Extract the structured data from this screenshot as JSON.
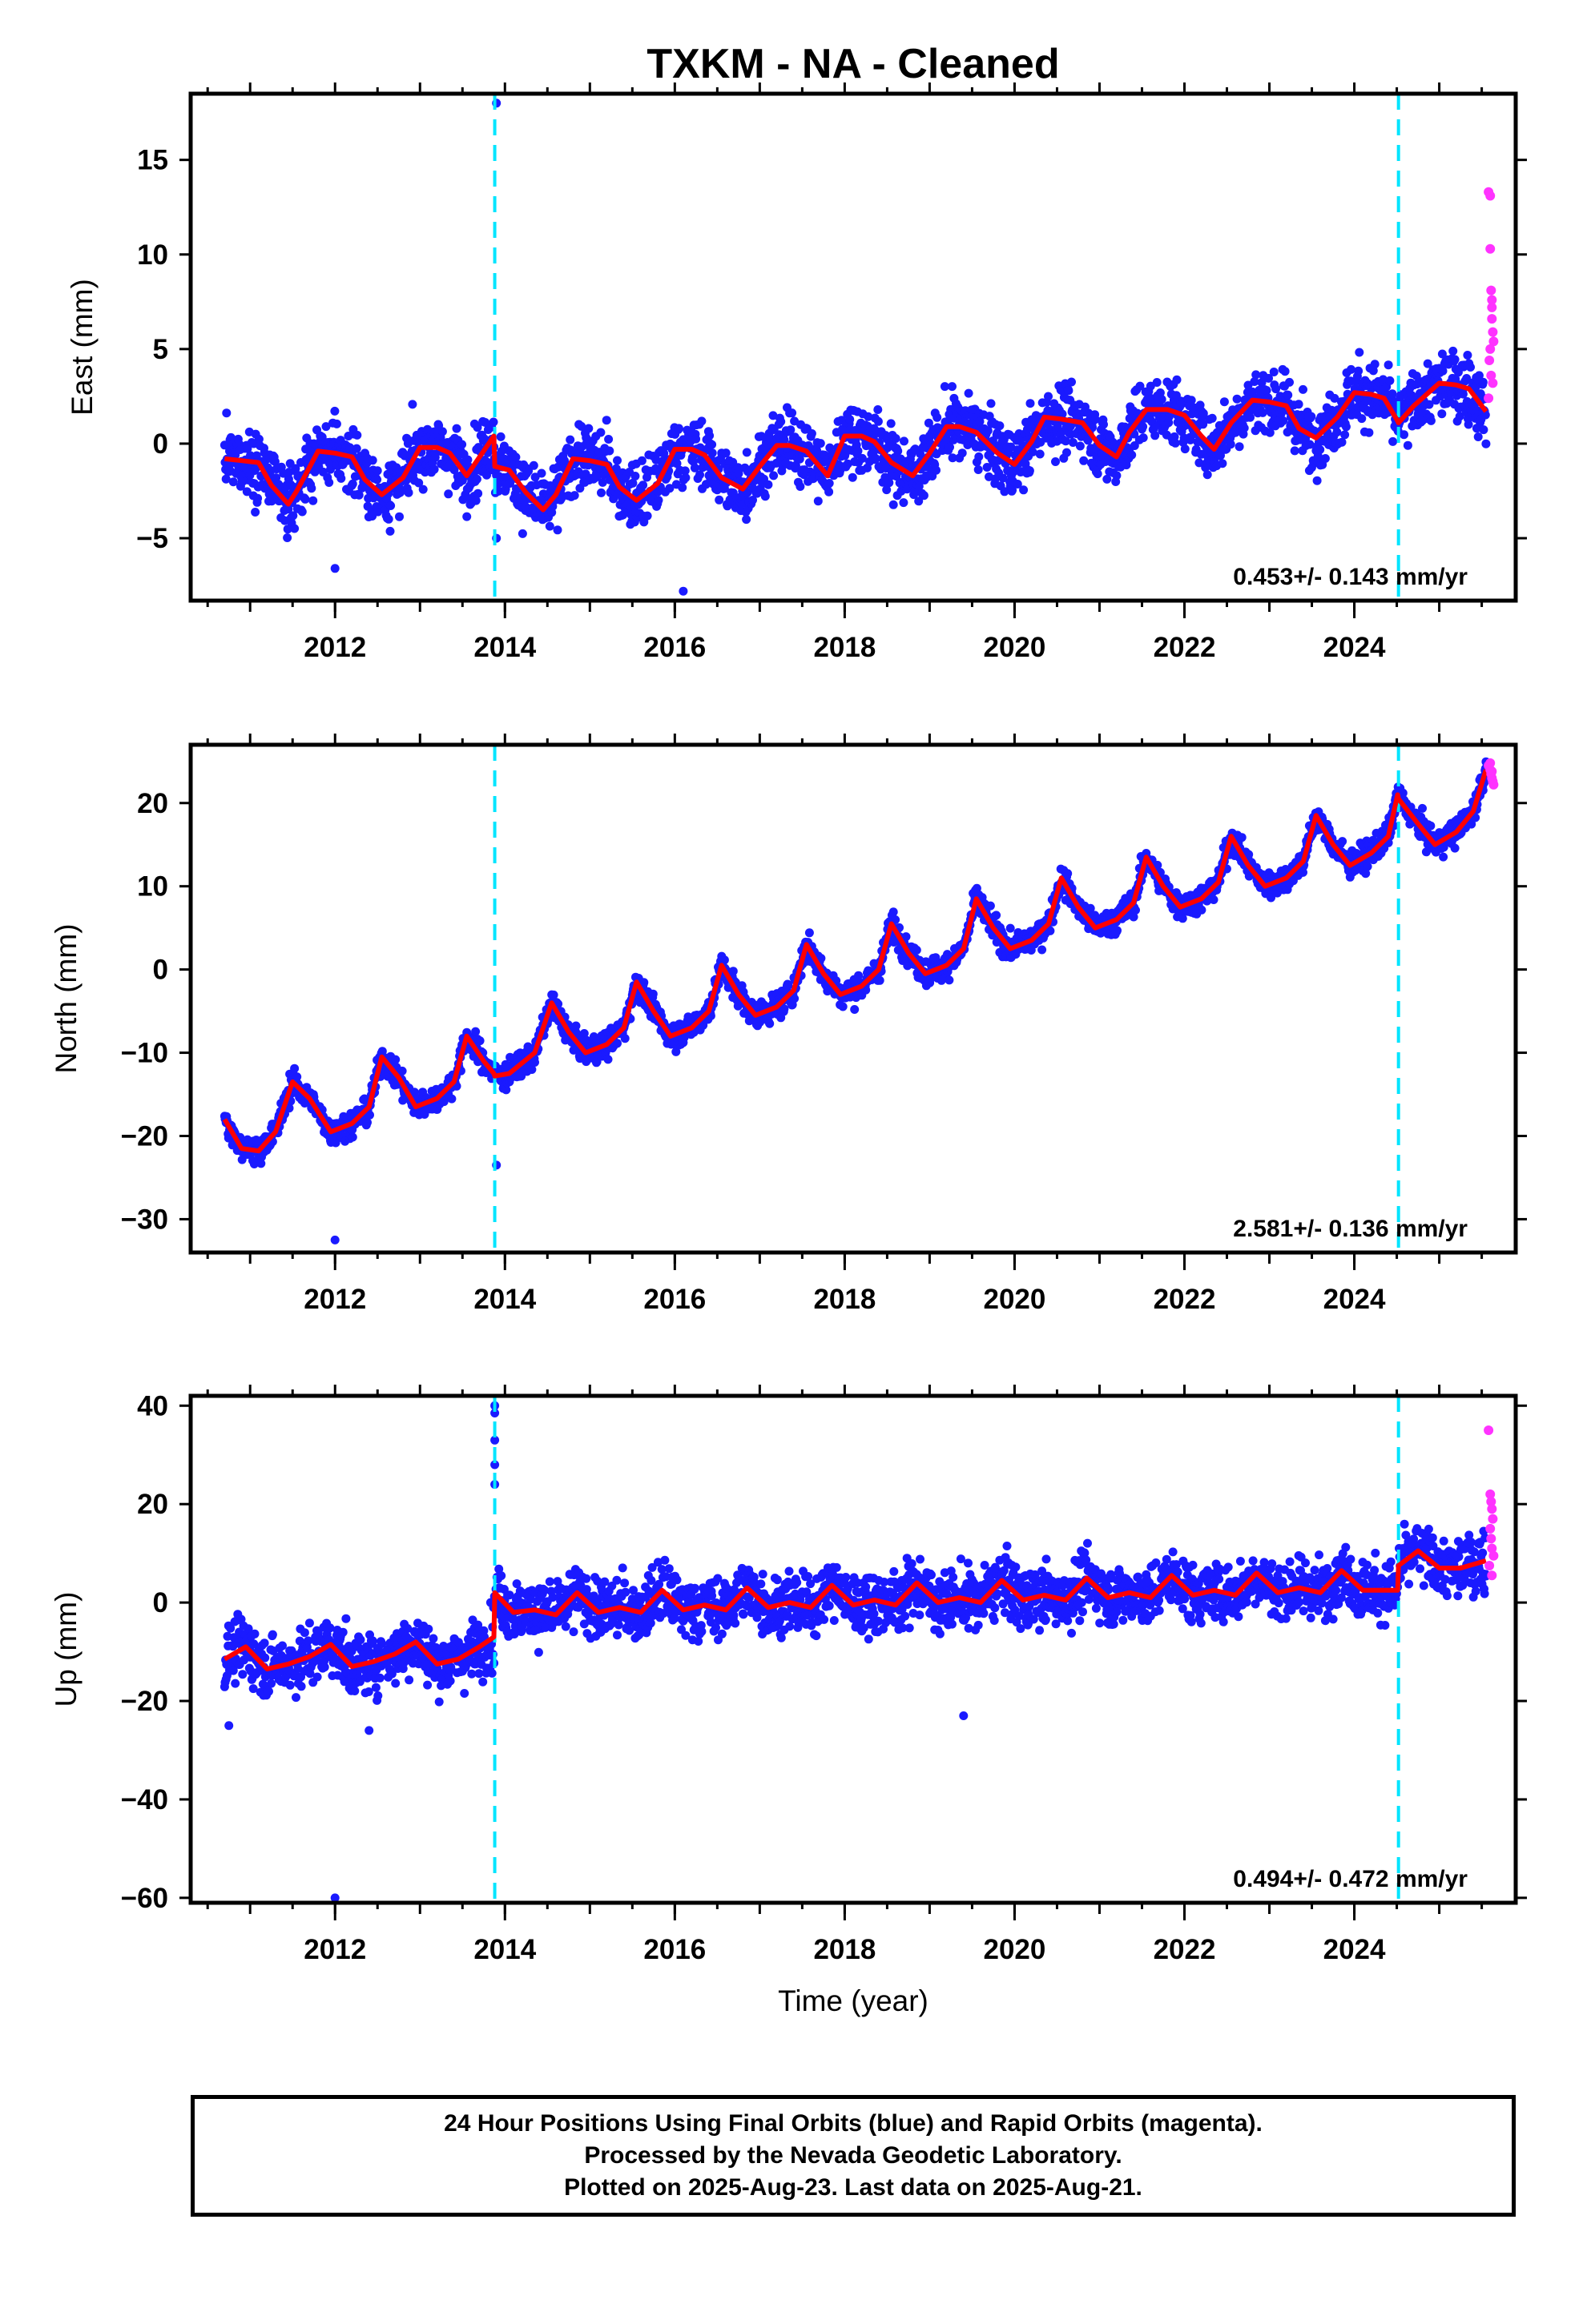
{
  "colors": {
    "final_orbits": "#1a1aff",
    "rapid_orbits": "#ff33ff",
    "model_fit": "#ff0000",
    "antenna_change_line": "#00e5ff"
  },
  "chart_data": [
    {
      "type": "scatter",
      "title": "TXKM  - NA - Cleaned",
      "ylabel": "East (mm)",
      "xlabel": "",
      "xlim": [
        2010.3,
        2025.9
      ],
      "ylim": [
        -8.3,
        18.5
      ],
      "xticks": [
        2012,
        2014,
        2016,
        2018,
        2020,
        2022,
        2024
      ],
      "xtick_labels": [
        "2012",
        "2014",
        "2016",
        "2018",
        "2020",
        "2022",
        "2024"
      ],
      "yticks": [
        -5,
        0,
        5,
        10,
        15
      ],
      "ytick_labels": [
        "−5",
        "0",
        "5",
        "10",
        "15"
      ],
      "rate_text": "0.453+/- 0.143 mm/yr",
      "grid": false,
      "vertical_lines": [
        2013.88,
        2024.52
      ],
      "series": [
        {
          "name": "Final Orbits (blue)",
          "style": "points",
          "trend": "noisy-seasonal",
          "x_range": [
            2010.7,
            2025.55
          ],
          "y_start": -0.9,
          "y_end": 4.2,
          "amplitude": 1.4,
          "noise": 1.2,
          "offsets": []
        },
        {
          "name": "Rapid Orbits (magenta)",
          "style": "points",
          "x": [
            2025.58,
            2025.6,
            2025.6,
            2025.61,
            2025.62,
            2025.62,
            2025.63,
            2025.64,
            2025.6,
            2025.59,
            2025.61,
            2025.63,
            2025.58,
            2025.62
          ],
          "y": [
            13.3,
            13.1,
            10.3,
            8.1,
            7.6,
            6.6,
            5.9,
            5.4,
            5.0,
            4.4,
            3.6,
            3.2,
            2.4,
            7.2
          ]
        },
        {
          "name": "Model fit",
          "style": "line",
          "x": [
            2010.7,
            2010.9,
            2011.1,
            2011.25,
            2011.45,
            2011.55,
            2011.8,
            2012.0,
            2012.2,
            2012.35,
            2012.55,
            2012.8,
            2013.0,
            2013.2,
            2013.35,
            2013.55,
            2013.87,
            2013.88,
            2014.05,
            2014.25,
            2014.45,
            2014.6,
            2014.8,
            2015.0,
            2015.2,
            2015.35,
            2015.55,
            2015.8,
            2016.0,
            2016.2,
            2016.35,
            2016.55,
            2016.8,
            2017.0,
            2017.2,
            2017.35,
            2017.55,
            2017.8,
            2018.0,
            2018.2,
            2018.35,
            2018.55,
            2018.8,
            2019.0,
            2019.2,
            2019.35,
            2019.55,
            2019.8,
            2020.0,
            2020.2,
            2020.35,
            2020.55,
            2020.8,
            2021.0,
            2021.2,
            2021.35,
            2021.55,
            2021.8,
            2022.0,
            2022.2,
            2022.35,
            2022.55,
            2022.8,
            2023.0,
            2023.2,
            2023.35,
            2023.55,
            2023.8,
            2024.0,
            2024.2,
            2024.35,
            2024.51,
            2024.52,
            2024.7,
            2025.0,
            2025.2,
            2025.35,
            2025.55
          ],
          "y": [
            -0.8,
            -0.9,
            -1.0,
            -2.2,
            -3.2,
            -2.5,
            -0.4,
            -0.5,
            -0.7,
            -1.9,
            -2.7,
            -1.8,
            -0.2,
            -0.2,
            -0.5,
            -1.7,
            0.4,
            -1.2,
            -1.4,
            -2.6,
            -3.5,
            -2.7,
            -0.8,
            -0.9,
            -1.1,
            -2.3,
            -3.0,
            -2.1,
            -0.3,
            -0.3,
            -0.6,
            -1.8,
            -2.4,
            -1.2,
            -0.1,
            -0.1,
            -0.4,
            -1.7,
            0.4,
            0.4,
            0.1,
            -1.0,
            -1.7,
            -0.5,
            0.9,
            0.9,
            0.6,
            -0.5,
            -1.1,
            0.1,
            1.4,
            1.3,
            1.1,
            -0.1,
            -0.7,
            0.6,
            1.8,
            1.8,
            1.5,
            0.4,
            -0.3,
            1.1,
            2.3,
            2.2,
            2.0,
            0.8,
            0.3,
            1.4,
            2.7,
            2.6,
            2.4,
            1.2,
            1.1,
            2.0,
            3.2,
            3.1,
            2.9,
            1.7
          ]
        }
      ]
    },
    {
      "type": "scatter",
      "title": "",
      "ylabel": "North (mm)",
      "xlabel": "",
      "xlim": [
        2010.3,
        2025.9
      ],
      "ylim": [
        -34,
        27
      ],
      "xticks": [
        2012,
        2014,
        2016,
        2018,
        2020,
        2022,
        2024
      ],
      "xtick_labels": [
        "2012",
        "2014",
        "2016",
        "2018",
        "2020",
        "2022",
        "2024"
      ],
      "yticks": [
        -30,
        -20,
        -10,
        0,
        10,
        20
      ],
      "ytick_labels": [
        "−30",
        "−20",
        "−10",
        "0",
        "10",
        "20"
      ],
      "rate_text": "2.581+/- 0.136 mm/yr",
      "grid": false,
      "vertical_lines": [
        2013.88,
        2024.52
      ],
      "series": [
        {
          "name": "Final Orbits (blue)",
          "style": "points",
          "trend": "seasonal",
          "x_range": [
            2010.7,
            2025.55
          ],
          "y_start": -19,
          "y_end": 18,
          "amplitude": 4.0,
          "noise": 1.1,
          "offsets": []
        },
        {
          "name": "Rapid Orbits (magenta)",
          "style": "points",
          "x": [
            2025.58,
            2025.6,
            2025.61,
            2025.62,
            2025.63,
            2025.64,
            2025.6,
            2025.62
          ],
          "y": [
            24.5,
            24.0,
            23.5,
            23.0,
            22.6,
            22.2,
            24.8,
            23.8
          ]
        },
        {
          "name": "Model fit",
          "style": "line",
          "x": [
            2010.7,
            2010.9,
            2011.1,
            2011.3,
            2011.5,
            2011.7,
            2011.95,
            2012.2,
            2012.4,
            2012.55,
            2012.75,
            2012.95,
            2013.2,
            2013.4,
            2013.55,
            2013.75,
            2013.87,
            2013.88,
            2014.05,
            2014.35,
            2014.55,
            2014.75,
            2014.95,
            2015.2,
            2015.4,
            2015.55,
            2015.75,
            2015.95,
            2016.2,
            2016.4,
            2016.55,
            2016.75,
            2016.95,
            2017.2,
            2017.4,
            2017.55,
            2017.75,
            2017.95,
            2018.2,
            2018.4,
            2018.55,
            2018.75,
            2018.95,
            2019.2,
            2019.4,
            2019.55,
            2019.75,
            2019.95,
            2020.2,
            2020.4,
            2020.55,
            2020.75,
            2020.95,
            2021.2,
            2021.4,
            2021.55,
            2021.75,
            2021.95,
            2022.2,
            2022.4,
            2022.55,
            2022.75,
            2022.95,
            2023.2,
            2023.4,
            2023.55,
            2023.75,
            2023.95,
            2024.2,
            2024.4,
            2024.51,
            2024.52,
            2024.75,
            2024.95,
            2025.2,
            2025.4,
            2025.55
          ],
          "y": [
            -18,
            -21.5,
            -21.8,
            -19.5,
            -13.5,
            -15.5,
            -19.5,
            -18.5,
            -16.5,
            -10.5,
            -13.0,
            -16.5,
            -15.5,
            -13.5,
            -8.0,
            -11.0,
            -12.5,
            -12.8,
            -12.5,
            -10.0,
            -4.0,
            -7.5,
            -10.0,
            -9.0,
            -7.0,
            -1.5,
            -5.0,
            -8.0,
            -7.0,
            -5.0,
            0.5,
            -3.0,
            -5.5,
            -4.5,
            -2.5,
            3.0,
            -0.5,
            -3.0,
            -2.0,
            0.0,
            5.5,
            2.0,
            -0.5,
            0.5,
            2.5,
            8.5,
            5.0,
            2.5,
            3.5,
            5.5,
            11.0,
            7.5,
            5.0,
            6.0,
            8.0,
            13.5,
            10.0,
            7.5,
            8.5,
            10.5,
            16.0,
            12.5,
            10.0,
            11.0,
            13.0,
            18.5,
            15.0,
            12.5,
            14.0,
            16.0,
            21.0,
            20.5,
            17.5,
            15.0,
            16.5,
            19.0,
            24.0
          ]
        }
      ]
    },
    {
      "type": "scatter",
      "title": "",
      "ylabel": "Up (mm)",
      "xlabel": "Time (year)",
      "xlim": [
        2010.3,
        2025.9
      ],
      "ylim": [
        -61,
        42
      ],
      "xticks": [
        2012,
        2014,
        2016,
        2018,
        2020,
        2022,
        2024
      ],
      "xtick_labels": [
        "2012",
        "2014",
        "2016",
        "2018",
        "2020",
        "2022",
        "2024"
      ],
      "yticks": [
        -60,
        -40,
        -20,
        0,
        20,
        40
      ],
      "ytick_labels": [
        "−60",
        "−40",
        "−20",
        "0",
        "20",
        "40"
      ],
      "rate_text": "0.494+/- 0.472 mm/yr",
      "grid": false,
      "vertical_lines": [
        2013.88,
        2024.52
      ],
      "series": [
        {
          "name": "Final Orbits (blue)",
          "style": "points",
          "trend": "noisy-seasonal",
          "x_range": [
            2010.7,
            2025.55
          ],
          "y_start": -11.5,
          "y_end": 7.5,
          "amplitude": 2.5,
          "noise": 4.2,
          "offsets": [
            {
              "at": 2013.88,
              "jump": 9.5
            }
          ]
        },
        {
          "name": "Rapid Orbits (magenta)",
          "style": "points",
          "x": [
            2025.58,
            2025.6,
            2025.61,
            2025.62,
            2025.63,
            2025.6,
            2025.61,
            2025.62,
            2025.64,
            2025.59,
            2025.62
          ],
          "y": [
            35.0,
            22.0,
            20.5,
            19.0,
            17.0,
            15.0,
            13.0,
            11.0,
            9.5,
            7.5,
            5.5
          ]
        },
        {
          "name": "Model fit",
          "style": "line",
          "x": [
            2010.7,
            2010.95,
            2011.2,
            2011.45,
            2011.7,
            2011.95,
            2012.2,
            2012.45,
            2012.7,
            2012.95,
            2013.2,
            2013.45,
            2013.7,
            2013.87,
            2013.88,
            2014.1,
            2014.35,
            2014.6,
            2014.85,
            2015.1,
            2015.35,
            2015.6,
            2015.85,
            2016.1,
            2016.35,
            2016.6,
            2016.85,
            2017.1,
            2017.35,
            2017.6,
            2017.85,
            2018.1,
            2018.35,
            2018.6,
            2018.85,
            2019.1,
            2019.35,
            2019.6,
            2019.85,
            2020.1,
            2020.35,
            2020.6,
            2020.85,
            2021.1,
            2021.35,
            2021.6,
            2021.85,
            2022.1,
            2022.35,
            2022.6,
            2022.85,
            2023.1,
            2023.35,
            2023.6,
            2023.85,
            2024.1,
            2024.35,
            2024.51,
            2024.52,
            2024.75,
            2025.0,
            2025.25,
            2025.55
          ],
          "y": [
            -11.5,
            -9.0,
            -13.5,
            -12.5,
            -11.0,
            -8.5,
            -13.0,
            -12.0,
            -10.5,
            -8.0,
            -12.5,
            -11.5,
            -9.0,
            -7.0,
            2.0,
            -2.0,
            -1.5,
            -2.5,
            2.0,
            -2.0,
            -1.0,
            -2.0,
            2.5,
            -1.5,
            -0.5,
            -1.5,
            3.0,
            -1.0,
            0.0,
            -1.0,
            3.5,
            -0.5,
            0.5,
            -0.5,
            4.0,
            0.0,
            1.0,
            0.0,
            4.5,
            0.5,
            1.5,
            0.5,
            5.0,
            1.0,
            2.0,
            1.0,
            5.5,
            1.5,
            2.5,
            1.5,
            6.0,
            2.0,
            3.0,
            2.0,
            6.5,
            2.5,
            2.5,
            2.5,
            7.5,
            10.5,
            7.0,
            7.0,
            8.5
          ]
        }
      ]
    }
  ],
  "footer": {
    "line1": "24 Hour Positions Using Final Orbits (blue) and Rapid Orbits (magenta).",
    "line2": "Processed by the Nevada Geodetic Laboratory.",
    "line3": "Plotted on 2025-Aug-23. Last data on 2025-Aug-21."
  }
}
